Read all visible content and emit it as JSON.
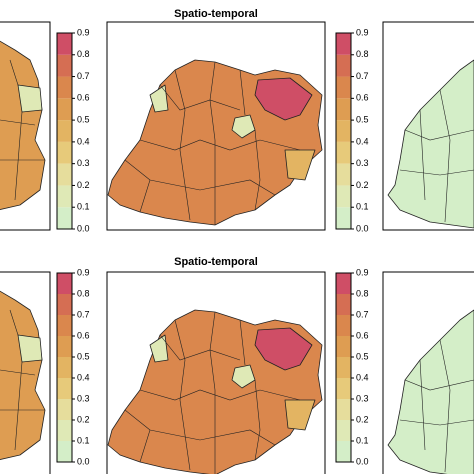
{
  "scale_colors": [
    "#d4eec8",
    "#dfe9b6",
    "#e6dd9c",
    "#e7ca7a",
    "#e3b462",
    "#de9d52",
    "#da874d",
    "#d56e53",
    "#cf4e66"
  ],
  "rows": [
    {
      "title": "Spatio-temporal",
      "colorbars": [
        {
          "ticks": [
            {
              "value": 0,
              "label": "0.0"
            },
            {
              "value": 0.1,
              "label": "0.1"
            },
            {
              "value": 0.2,
              "label": "0.2"
            },
            {
              "value": 0.3,
              "label": "0.3"
            },
            {
              "value": 0.4,
              "label": "0.4"
            },
            {
              "value": 0.5,
              "label": "0.5"
            },
            {
              "value": 0.6,
              "label": "0.6"
            },
            {
              "value": 0.7,
              "label": "0.7"
            },
            {
              "value": 0.8,
              "label": "0.8"
            },
            {
              "value": 0.9,
              "label": "0.9"
            }
          ]
        },
        {
          "ticks": [
            {
              "value": 0,
              "label": "0.0"
            },
            {
              "value": 0.1,
              "label": "0.1"
            },
            {
              "value": 0.2,
              "label": "0.2"
            },
            {
              "value": 0.3,
              "label": "0.3"
            },
            {
              "value": 0.4,
              "label": "0.4"
            },
            {
              "value": 0.5,
              "label": "0.5"
            },
            {
              "value": 0.6,
              "label": "0.6"
            },
            {
              "value": 0.7,
              "label": "0.7"
            },
            {
              "value": 0.8,
              "label": "0.8"
            },
            {
              "value": 0.9,
              "label": "0.9"
            }
          ]
        }
      ]
    },
    {
      "title": "Spatio-temporal",
      "colorbars": [
        {
          "ticks": [
            {
              "value": 0,
              "label": "0.0"
            },
            {
              "value": 0.1,
              "label": "0.1"
            },
            {
              "value": 0.2,
              "label": "0.2"
            },
            {
              "value": 0.3,
              "label": "0.3"
            },
            {
              "value": 0.4,
              "label": "0.4"
            },
            {
              "value": 0.5,
              "label": "0.5"
            },
            {
              "value": 0.6,
              "label": "0.6"
            },
            {
              "value": 0.7,
              "label": "0.7"
            },
            {
              "value": 0.8,
              "label": "0.8"
            },
            {
              "value": 0.9,
              "label": "0.9"
            }
          ]
        },
        {
          "ticks": [
            {
              "value": 0,
              "label": "0.0"
            },
            {
              "value": 0.1,
              "label": "0.1"
            },
            {
              "value": 0.2,
              "label": "0.2"
            },
            {
              "value": 0.3,
              "label": "0.3"
            },
            {
              "value": 0.4,
              "label": "0.4"
            },
            {
              "value": 0.5,
              "label": "0.5"
            },
            {
              "value": 0.6,
              "label": "0.6"
            },
            {
              "value": 0.7,
              "label": "0.7"
            },
            {
              "value": 0.8,
              "label": "0.8"
            },
            {
              "value": 0.9,
              "label": "0.9"
            }
          ]
        }
      ]
    }
  ]
}
